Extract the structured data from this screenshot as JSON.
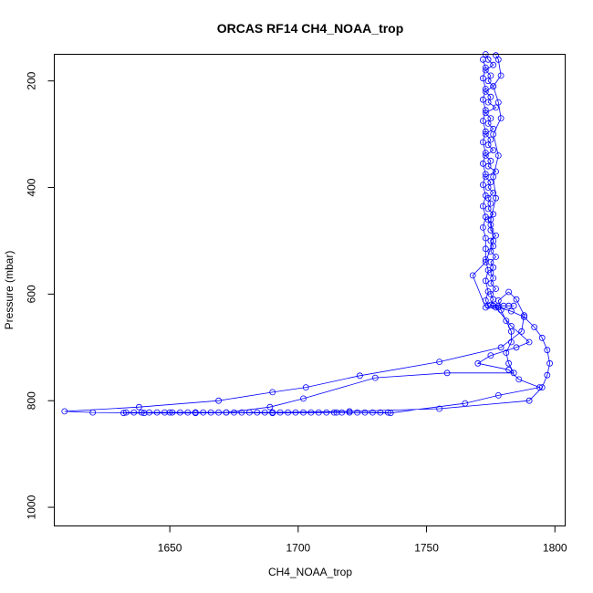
{
  "chart_data": {
    "type": "line",
    "title": "ORCAS RF14 CH4_NOAA_trop",
    "xlabel": "CH4_NOAA_trop",
    "ylabel": "Pressure (mbar)",
    "xlim": [
      1605,
      1804
    ],
    "ylim": [
      1035,
      150
    ],
    "y_reversed": true,
    "x_ticks": [
      1650,
      1700,
      1750,
      1800
    ],
    "y_ticks": [
      200,
      400,
      600,
      800,
      1000
    ],
    "grid": false,
    "legend": "none",
    "marker": "open-circle",
    "color": "#0000ff",
    "series": [
      {
        "values": [
          [
            1773,
            150
          ],
          [
            1774,
            160
          ],
          [
            1776,
            170
          ],
          [
            1773,
            180
          ],
          [
            1775,
            190
          ],
          [
            1774,
            200
          ],
          [
            1776,
            210
          ],
          [
            1773,
            220
          ],
          [
            1775,
            230
          ],
          [
            1774,
            240
          ],
          [
            1777,
            250
          ],
          [
            1773,
            260
          ],
          [
            1775,
            270
          ],
          [
            1774,
            280
          ],
          [
            1776,
            290
          ],
          [
            1773,
            300
          ],
          [
            1775,
            310
          ],
          [
            1774,
            320
          ],
          [
            1776,
            330
          ],
          [
            1773,
            340
          ],
          [
            1775,
            350
          ],
          [
            1774,
            360
          ],
          [
            1777,
            370
          ],
          [
            1773,
            380
          ],
          [
            1775,
            390
          ],
          [
            1774,
            400
          ],
          [
            1776,
            410
          ],
          [
            1774,
            420
          ],
          [
            1775,
            430
          ],
          [
            1774,
            440
          ],
          [
            1776,
            450
          ],
          [
            1774,
            460
          ],
          [
            1775,
            470
          ],
          [
            1775,
            480
          ],
          [
            1777,
            490
          ],
          [
            1775,
            500
          ],
          [
            1776,
            510
          ],
          [
            1775,
            520
          ],
          [
            1777,
            530
          ],
          [
            1775,
            540
          ],
          [
            1776,
            550
          ],
          [
            1775,
            560
          ],
          [
            1776,
            570
          ],
          [
            1775,
            580
          ],
          [
            1777,
            590
          ],
          [
            1775,
            600
          ],
          [
            1776,
            610
          ],
          [
            1775,
            620
          ],
          [
            1778,
            625
          ],
          [
            1783,
            632
          ],
          [
            1788,
            643
          ],
          [
            1792,
            662
          ],
          [
            1795,
            682
          ],
          [
            1797,
            705
          ],
          [
            1798,
            730
          ],
          [
            1797,
            752
          ],
          [
            1795,
            775
          ],
          [
            1790,
            800
          ],
          [
            1755,
            815
          ],
          [
            1720,
            820
          ],
          [
            1690,
            822
          ],
          [
            1660,
            823
          ],
          [
            1640,
            823
          ],
          [
            1620,
            822
          ],
          [
            1609,
            820
          ],
          [
            1638,
            812
          ],
          [
            1669,
            800
          ],
          [
            1690,
            784
          ],
          [
            1703,
            775
          ],
          [
            1724,
            753
          ],
          [
            1755,
            727
          ],
          [
            1779,
            700
          ],
          [
            1787,
            670
          ],
          [
            1788,
            640
          ],
          [
            1785,
            610
          ],
          [
            1782,
            596
          ],
          [
            1778,
            612
          ],
          [
            1779,
            630
          ],
          [
            1781,
            650
          ],
          [
            1783,
            670
          ],
          [
            1783,
            690
          ],
          [
            1781,
            710
          ],
          [
            1782,
            730
          ],
          [
            1784,
            748
          ],
          [
            1758,
            748
          ],
          [
            1730,
            757
          ],
          [
            1702,
            796
          ],
          [
            1689,
            812
          ],
          [
            1672,
            822
          ],
          [
            1650,
            822
          ],
          [
            1632,
            823
          ],
          [
            1660,
            822
          ],
          [
            1690,
            823
          ],
          [
            1715,
            822
          ],
          [
            1736,
            823
          ],
          [
            1765,
            805
          ],
          [
            1778,
            790
          ],
          [
            1794,
            775
          ],
          [
            1786,
            760
          ],
          [
            1782,
            742
          ],
          [
            1770,
            730
          ],
          [
            1775,
            715
          ],
          [
            1785,
            700
          ],
          [
            1790,
            690
          ],
          [
            1783,
            660
          ],
          [
            1777,
            625
          ],
          [
            1773,
            625
          ],
          [
            1768,
            565
          ],
          [
            1773,
            540
          ],
          [
            1776,
            500
          ],
          [
            1775,
            460
          ],
          [
            1777,
            420
          ],
          [
            1776,
            380
          ],
          [
            1778,
            340
          ],
          [
            1776,
            300
          ],
          [
            1779,
            270
          ],
          [
            1778,
            240
          ],
          [
            1776,
            210
          ],
          [
            1779,
            190
          ],
          [
            1778,
            160
          ],
          [
            1777,
            152
          ]
        ]
      },
      {
        "values": [
          [
            1633,
            822
          ],
          [
            1636,
            822
          ],
          [
            1639,
            822
          ],
          [
            1642,
            822
          ],
          [
            1645,
            822
          ],
          [
            1648,
            822
          ],
          [
            1651,
            822
          ],
          [
            1654,
            822
          ],
          [
            1657,
            822
          ],
          [
            1660,
            822
          ],
          [
            1663,
            822
          ],
          [
            1666,
            822
          ],
          [
            1669,
            822
          ],
          [
            1672,
            822
          ],
          [
            1675,
            822
          ],
          [
            1678,
            822
          ],
          [
            1681,
            822
          ],
          [
            1684,
            822
          ],
          [
            1687,
            822
          ],
          [
            1690,
            822
          ],
          [
            1693,
            822
          ],
          [
            1696,
            822
          ],
          [
            1699,
            822
          ],
          [
            1702,
            822
          ],
          [
            1705,
            822
          ],
          [
            1708,
            822
          ],
          [
            1711,
            822
          ],
          [
            1714,
            822
          ],
          [
            1717,
            822
          ],
          [
            1720,
            822
          ],
          [
            1723,
            822
          ],
          [
            1726,
            822
          ],
          [
            1729,
            822
          ],
          [
            1732,
            822
          ],
          [
            1735,
            822
          ]
        ]
      },
      {
        "values": [
          [
            1772,
            160
          ],
          [
            1773,
            175
          ],
          [
            1772,
            195
          ],
          [
            1773,
            215
          ],
          [
            1772,
            235
          ],
          [
            1773,
            255
          ],
          [
            1772,
            275
          ],
          [
            1773,
            295
          ],
          [
            1772,
            315
          ],
          [
            1773,
            335
          ],
          [
            1772,
            355
          ],
          [
            1773,
            375
          ],
          [
            1772,
            395
          ],
          [
            1773,
            415
          ],
          [
            1772,
            435
          ],
          [
            1773,
            455
          ],
          [
            1772,
            475
          ],
          [
            1773,
            495
          ],
          [
            1773,
            515
          ],
          [
            1773,
            535
          ],
          [
            1774,
            555
          ],
          [
            1773,
            575
          ],
          [
            1774,
            595
          ],
          [
            1773,
            612
          ],
          [
            1774,
            622
          ],
          [
            1776,
            622
          ],
          [
            1778,
            622
          ],
          [
            1780,
            622
          ],
          [
            1782,
            622
          ],
          [
            1784,
            622
          ]
        ]
      }
    ]
  }
}
